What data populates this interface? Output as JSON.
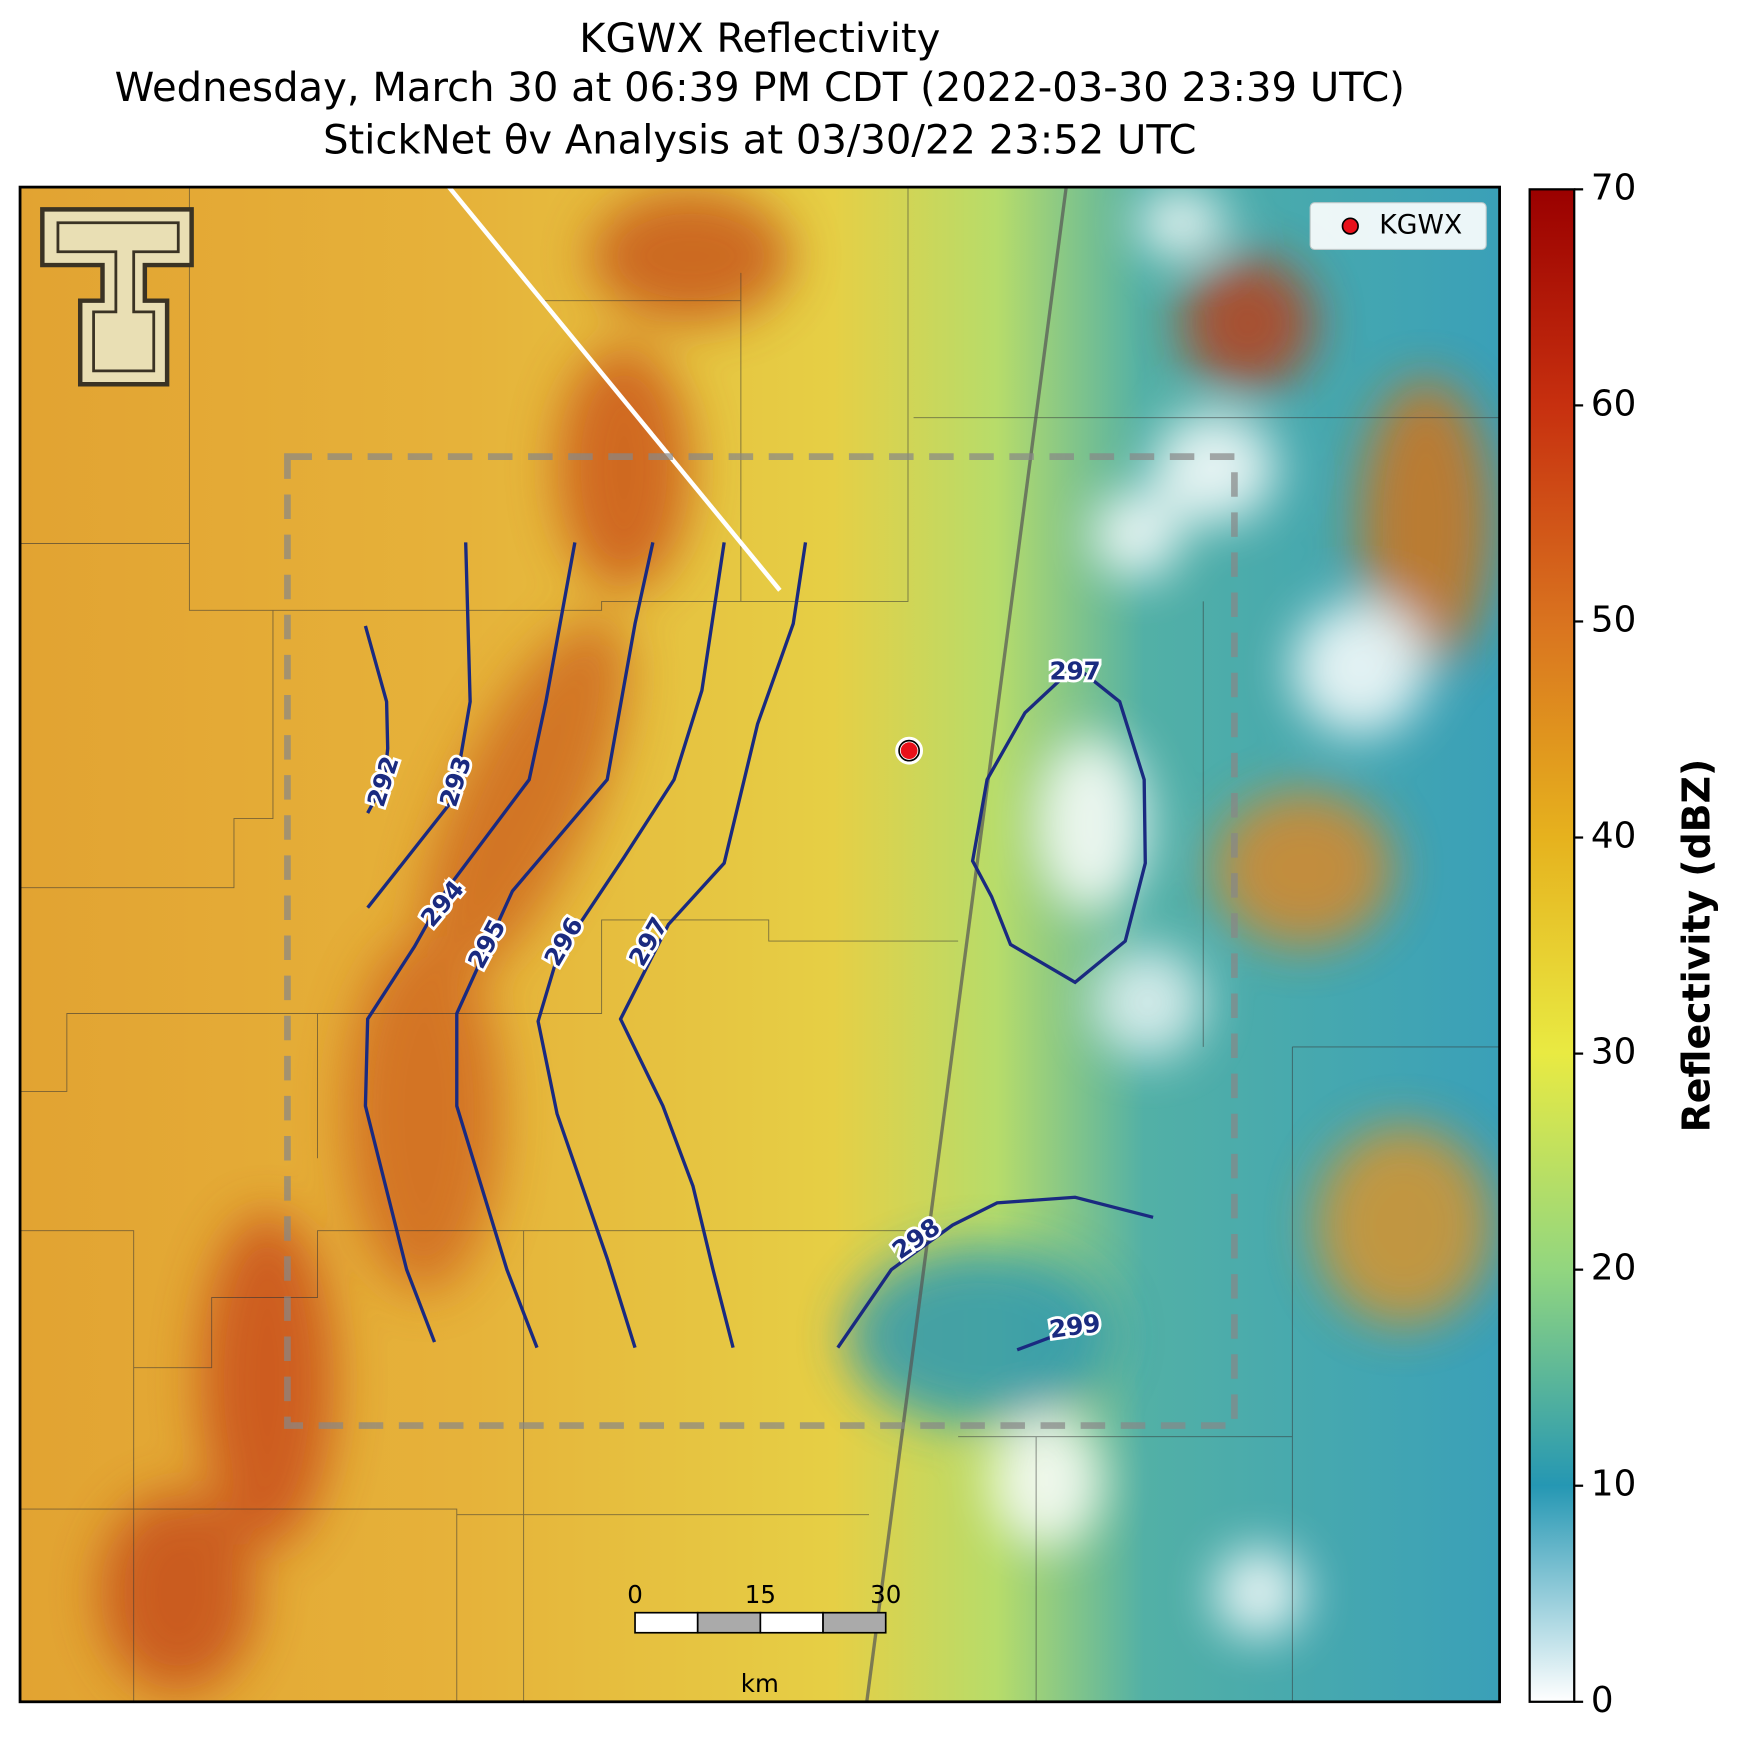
{
  "header": {
    "title": "KGWX Reflectivity",
    "subtitle": "Wednesday, March 30 at 06:39 PM CDT (2022-03-30 23:39 UTC)",
    "analysis": "StickNet θv Analysis at 03/30/22 23:52 UTC"
  },
  "legend": {
    "label": "KGWX"
  },
  "colorbar": {
    "label": "Reflectivity (dBZ)",
    "lim": [
      0,
      70
    ],
    "ticks": [
      0,
      10,
      20,
      30,
      40,
      50,
      60,
      70
    ]
  },
  "contours": [
    {
      "value": 292
    },
    {
      "value": 293
    },
    {
      "value": 294
    },
    {
      "value": 295
    },
    {
      "value": 296
    },
    {
      "value": 297
    },
    {
      "value": 297
    },
    {
      "value": 298
    },
    {
      "value": 299
    }
  ],
  "scale_bar": {
    "ticks": [
      0,
      15,
      30
    ],
    "unit": "km"
  }
}
